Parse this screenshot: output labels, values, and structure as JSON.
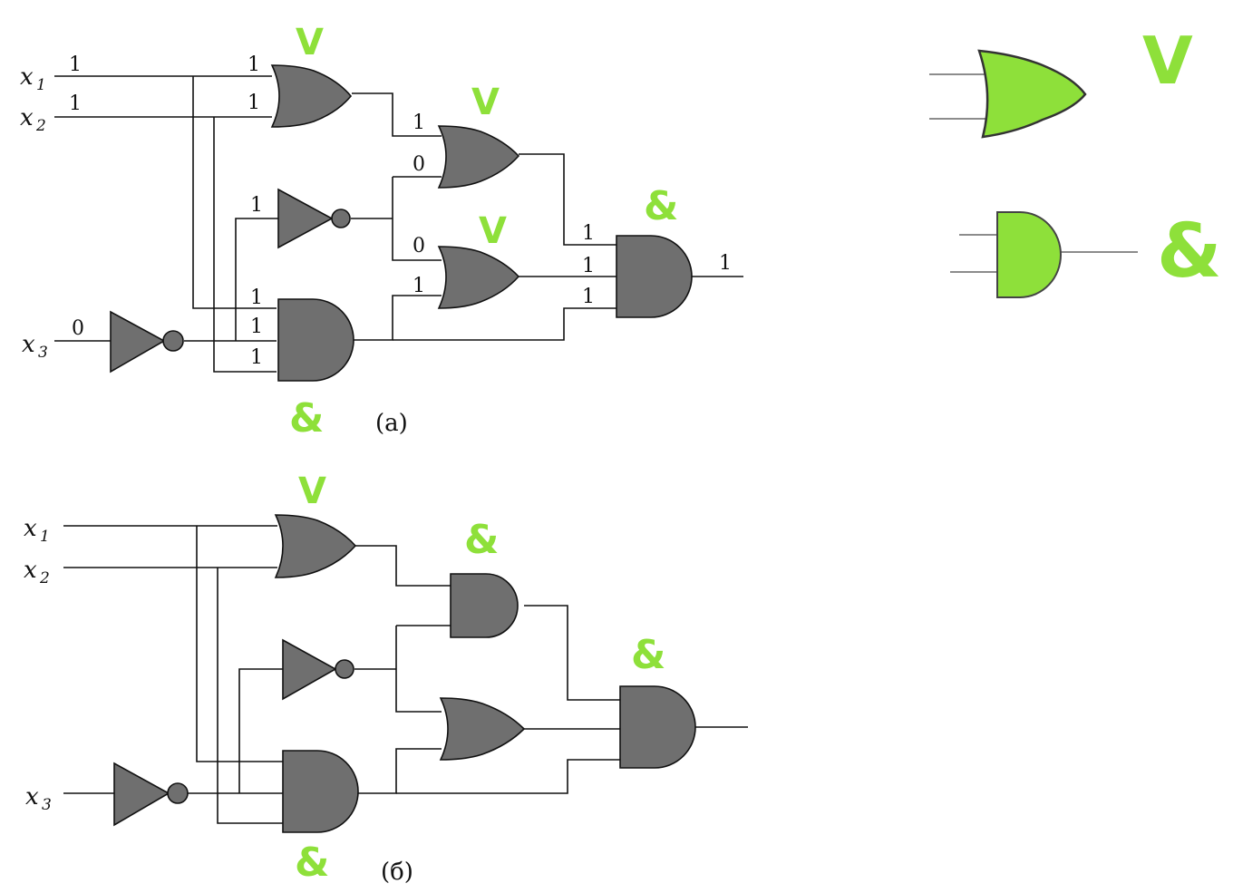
{
  "diagram_a": {
    "caption": "(а)",
    "inputs": {
      "x1": "x",
      "x1_sub": "1",
      "x2": "x",
      "x2_sub": "2",
      "x3": "x",
      "x3_sub": "3"
    },
    "values": {
      "x1_in": "1",
      "x2_in": "1",
      "x3_in": "0",
      "or1_in1": "1",
      "or1_in2": "1",
      "or2_in1": "1",
      "or2_in2": "0",
      "not_in": "1",
      "or3_in1": "0",
      "or3_in2": "1",
      "and1_in1": "1",
      "and1_in2": "1",
      "and1_in3": "1",
      "and2_in1": "1",
      "and2_in2": "1",
      "and2_in3": "1",
      "out": "1"
    },
    "annotations": {
      "or1": "V",
      "or2": "V",
      "or3": "V",
      "and1": "&",
      "and2": "&"
    }
  },
  "diagram_b": {
    "caption": "(б)",
    "inputs": {
      "x1": "x",
      "x1_sub": "1",
      "x2": "x",
      "x2_sub": "2",
      "x3": "x",
      "x3_sub": "3"
    },
    "annotations": {
      "or1": "V",
      "and1": "&",
      "and2": "&",
      "and3": "&"
    }
  },
  "legend": {
    "or_symbol": "V",
    "and_symbol": "&",
    "highlight_color": "#8ee03a"
  }
}
